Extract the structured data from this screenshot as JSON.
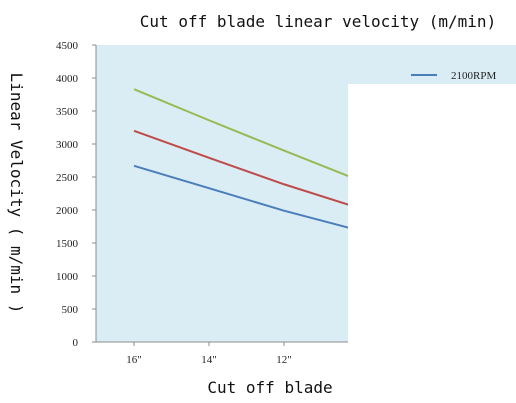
{
  "chart_data": {
    "type": "line",
    "title": "Cut off blade linear velocity (m/min)",
    "xlabel": "Cut off blade",
    "ylabel": "Linear Velocity ( m/min )",
    "categories": [
      "16\"",
      "14\"",
      "12\"",
      ""
    ],
    "ylim": [
      0,
      4500
    ],
    "yticks": [
      0,
      500,
      1000,
      1500,
      2000,
      2500,
      3000,
      3500,
      4000,
      4500
    ],
    "grid": false,
    "legend_position": "top-right",
    "series": [
      {
        "name": "2100RPM",
        "color": "#4a7ebb",
        "values": [
          2670,
          2330,
          1990,
          1690
        ]
      },
      {
        "name": "",
        "color": "#be4b48",
        "values": [
          3200,
          2790,
          2390,
          2030
        ]
      },
      {
        "name": "",
        "color": "#98b954",
        "values": [
          3830,
          3360,
          2900,
          2450
        ]
      }
    ]
  }
}
